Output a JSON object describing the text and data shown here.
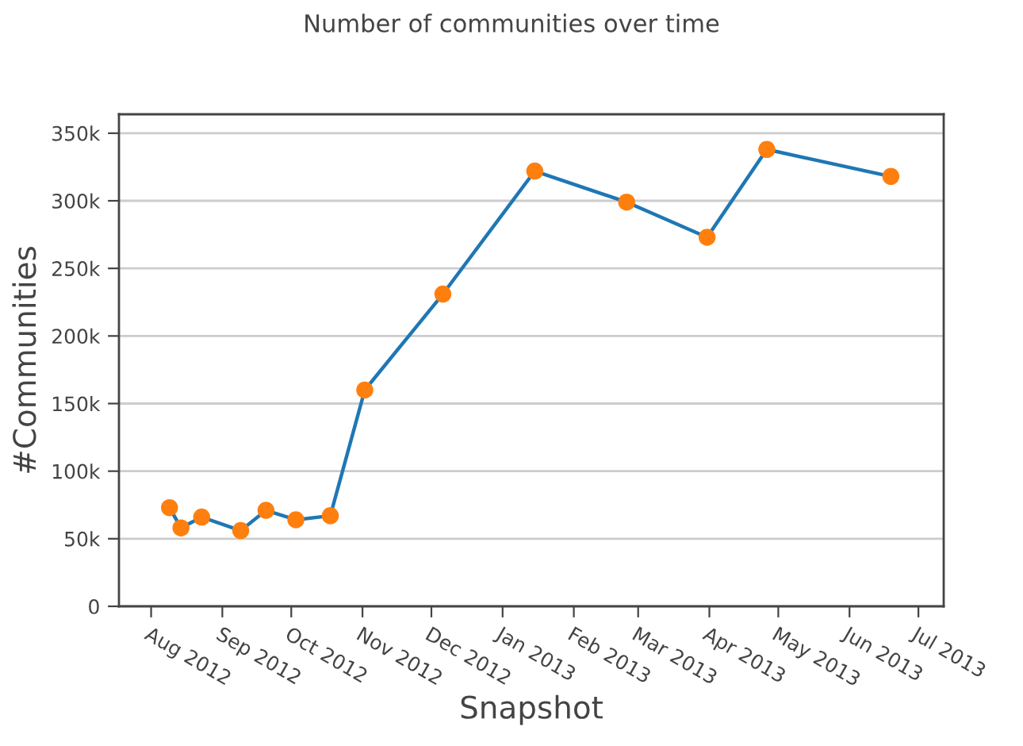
{
  "chart_data": {
    "type": "line",
    "title": "Number of communities over time",
    "xlabel": "Snapshot",
    "ylabel": "#Communities",
    "x": [
      "2012-08-09",
      "2012-08-14",
      "2012-08-23",
      "2012-09-09",
      "2012-09-20",
      "2012-10-03",
      "2012-10-18",
      "2012-11-02",
      "2012-12-06",
      "2013-01-15",
      "2013-02-24",
      "2013-03-31",
      "2013-04-26",
      "2013-06-19"
    ],
    "series": [
      {
        "color": "#1f77b4",
        "colors": [
          "#ff7f0e",
          "#ff7f0e",
          "#ff7f0e",
          "#ff7f0e",
          "#ff7f0e",
          "#ff7f0e",
          "#ff7f0e",
          "#ff7f0e",
          "#ff7f0e",
          "#ff7f0e",
          "#ff7f0e",
          "#ff7f0e",
          "#ff7f0e",
          "#ff7f0e"
        ],
        "values": [
          73000,
          58000,
          66000,
          56000,
          71000,
          64000,
          67000,
          160000,
          231000,
          322000,
          299000,
          273000,
          338000,
          318000
        ]
      }
    ],
    "xlim": [
      "2012-07-18",
      "2013-07-12"
    ],
    "xticks": [
      {
        "value": "2012-08-01",
        "label": "Aug 2012"
      },
      {
        "value": "2012-09-01",
        "label": "Sep 2012"
      },
      {
        "value": "2012-10-01",
        "label": "Oct 2012"
      },
      {
        "value": "2012-11-01",
        "label": "Nov 2012"
      },
      {
        "value": "2012-12-01",
        "label": "Dec 2012"
      },
      {
        "value": "2013-01-01",
        "label": "Jan 2013"
      },
      {
        "value": "2013-02-01",
        "label": "Feb 2013"
      },
      {
        "value": "2013-03-01",
        "label": "Mar 2013"
      },
      {
        "value": "2013-04-01",
        "label": "Apr 2013"
      },
      {
        "value": "2013-05-01",
        "label": "May 2013"
      },
      {
        "value": "2013-06-01",
        "label": "Jun 2013"
      },
      {
        "value": "2013-07-01",
        "label": "Jul 2013"
      }
    ],
    "ylim": [
      0,
      364000
    ],
    "yticks": [
      0,
      {
        "value": 50000,
        "label": "50k"
      },
      {
        "value": 100000,
        "label": "100k"
      },
      {
        "value": 150000,
        "label": "150k"
      },
      {
        "value": 200000,
        "label": "200k"
      },
      {
        "value": 250000,
        "label": "250k"
      },
      {
        "value": 300000,
        "label": "300k"
      },
      {
        "value": 350000,
        "label": "350k"
      }
    ],
    "grid": "y",
    "marker": "circle",
    "line_style": "solid"
  }
}
